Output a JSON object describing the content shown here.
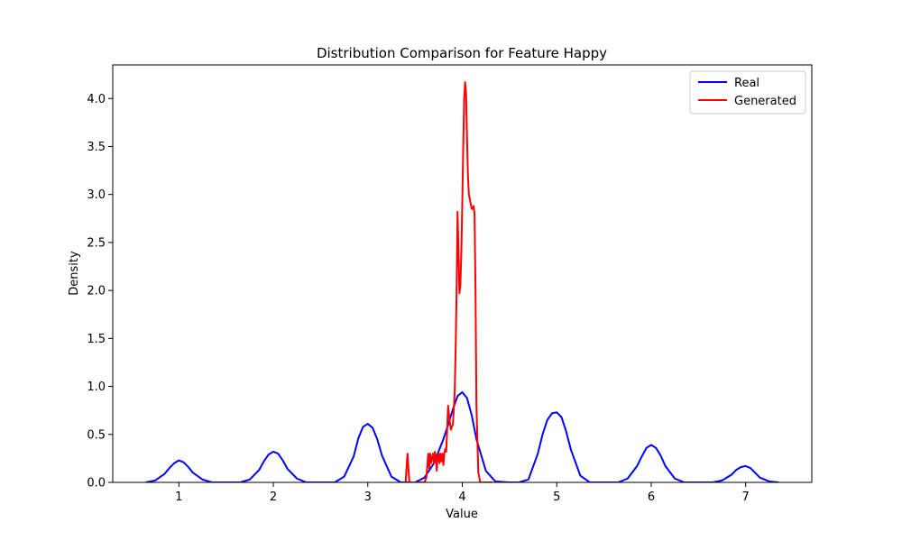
{
  "chart_data": {
    "type": "line",
    "title": "Distribution Comparison for Feature Happy",
    "xlabel": "Value",
    "ylabel": "Density",
    "xlim": [
      0.3,
      7.7
    ],
    "ylim": [
      0,
      4.35
    ],
    "xticks": [
      "1",
      "2",
      "3",
      "4",
      "5",
      "6",
      "7"
    ],
    "yticks": [
      "0.0",
      "0.5",
      "1.0",
      "1.5",
      "2.0",
      "2.5",
      "3.0",
      "3.5",
      "4.0"
    ],
    "grid": false,
    "legend_position": "top-right",
    "series": [
      {
        "name": "Real",
        "color": "#0000ff",
        "x": [
          0.65,
          0.75,
          0.85,
          0.9,
          0.95,
          1.0,
          1.05,
          1.1,
          1.15,
          1.25,
          1.35,
          1.5,
          1.65,
          1.75,
          1.85,
          1.9,
          1.95,
          2.0,
          2.05,
          2.1,
          2.15,
          2.25,
          2.35,
          2.5,
          2.65,
          2.75,
          2.85,
          2.9,
          2.95,
          3.0,
          3.05,
          3.1,
          3.15,
          3.25,
          3.35,
          3.5,
          3.6,
          3.7,
          3.8,
          3.85,
          3.9,
          3.95,
          4.0,
          4.05,
          4.1,
          4.15,
          4.25,
          4.35,
          4.5,
          4.6,
          4.7,
          4.8,
          4.85,
          4.9,
          4.95,
          5.0,
          5.05,
          5.1,
          5.15,
          5.25,
          5.35,
          5.5,
          5.65,
          5.75,
          5.85,
          5.9,
          5.95,
          6.0,
          6.05,
          6.1,
          6.15,
          6.25,
          6.35,
          6.5,
          6.65,
          6.75,
          6.85,
          6.9,
          6.95,
          7.0,
          7.05,
          7.1,
          7.15,
          7.25,
          7.35
        ],
        "y": [
          0.0,
          0.02,
          0.09,
          0.15,
          0.2,
          0.23,
          0.21,
          0.16,
          0.1,
          0.03,
          0.0,
          0.0,
          0.0,
          0.03,
          0.13,
          0.22,
          0.29,
          0.32,
          0.3,
          0.23,
          0.14,
          0.04,
          0.0,
          0.0,
          0.0,
          0.06,
          0.27,
          0.46,
          0.58,
          0.61,
          0.57,
          0.45,
          0.28,
          0.06,
          0.0,
          0.0,
          0.05,
          0.2,
          0.45,
          0.6,
          0.76,
          0.9,
          0.94,
          0.88,
          0.7,
          0.45,
          0.12,
          0.01,
          0.0,
          0.0,
          0.03,
          0.3,
          0.5,
          0.65,
          0.72,
          0.73,
          0.68,
          0.53,
          0.34,
          0.07,
          0.0,
          0.0,
          0.0,
          0.04,
          0.17,
          0.27,
          0.36,
          0.39,
          0.36,
          0.28,
          0.17,
          0.04,
          0.0,
          0.0,
          0.0,
          0.02,
          0.08,
          0.13,
          0.16,
          0.17,
          0.15,
          0.1,
          0.05,
          0.01,
          0.0
        ]
      },
      {
        "name": "Generated",
        "color": "#ff0000",
        "x": [
          3.4,
          3.42,
          3.44,
          3.46,
          3.6,
          3.62,
          3.64,
          3.65,
          3.66,
          3.67,
          3.68,
          3.69,
          3.7,
          3.71,
          3.72,
          3.73,
          3.74,
          3.75,
          3.76,
          3.77,
          3.78,
          3.79,
          3.8,
          3.81,
          3.82,
          3.83,
          3.84,
          3.85,
          3.86,
          3.87,
          3.88,
          3.89,
          3.9,
          3.91,
          3.92,
          3.93,
          3.94,
          3.95,
          3.96,
          3.97,
          3.98,
          3.99,
          4.0,
          4.01,
          4.02,
          4.03,
          4.04,
          4.05,
          4.06,
          4.07,
          4.08,
          4.09,
          4.1,
          4.11,
          4.12,
          4.13,
          4.14,
          4.15,
          4.17,
          4.19,
          4.21,
          4.23,
          4.25,
          4.26,
          4.27,
          4.28,
          4.29,
          4.3,
          4.32
        ],
        "y": [
          0.0,
          0.3,
          0.0,
          0.0,
          0.0,
          0.05,
          0.3,
          0.15,
          0.3,
          0.2,
          0.25,
          0.3,
          0.2,
          0.32,
          0.25,
          0.12,
          0.28,
          0.3,
          0.2,
          0.3,
          0.22,
          0.3,
          0.18,
          0.3,
          0.35,
          0.32,
          0.55,
          0.8,
          0.7,
          0.62,
          0.55,
          0.58,
          0.6,
          0.75,
          0.95,
          1.4,
          2.0,
          2.82,
          2.4,
          1.97,
          2.05,
          2.4,
          2.9,
          3.5,
          4.0,
          4.17,
          4.05,
          3.6,
          3.2,
          3.0,
          2.95,
          2.9,
          2.85,
          2.85,
          2.88,
          2.8,
          2.0,
          0.8,
          0.1,
          0.0,
          0.0,
          0.0,
          0.0,
          0.0,
          0.0,
          0.0,
          0.0,
          0.0,
          0.0
        ]
      }
    ]
  }
}
